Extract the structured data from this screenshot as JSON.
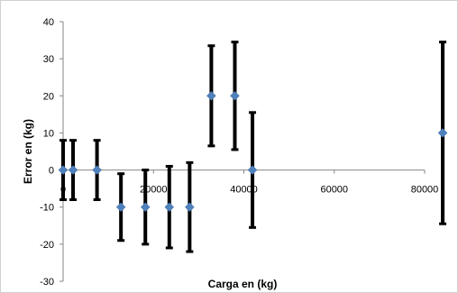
{
  "chart_data": {
    "type": "scatter",
    "xlabel": "Carga en (kg)",
    "ylabel": "Error en (kg)",
    "xlim": [
      0,
      80000
    ],
    "ylim": [
      -30,
      40
    ],
    "x_ticks": [
      0,
      20000,
      40000,
      60000,
      80000
    ],
    "y_ticks": [
      -30,
      -20,
      -10,
      0,
      10,
      20,
      30,
      40
    ],
    "grid": false,
    "legend": "none",
    "marker_color": "#4f81bd",
    "errorbar_color": "#000000",
    "points": [
      {
        "x": 0,
        "y": 0,
        "low": -8,
        "high": 8
      },
      {
        "x": 2200,
        "y": 0,
        "low": -8,
        "high": 8
      },
      {
        "x": 7500,
        "y": 0,
        "low": -8,
        "high": 8
      },
      {
        "x": 12800,
        "y": -10,
        "low": -19,
        "high": -1
      },
      {
        "x": 18200,
        "y": -10,
        "low": -20,
        "high": 0
      },
      {
        "x": 23500,
        "y": -10,
        "low": -21,
        "high": 1
      },
      {
        "x": 28000,
        "y": -10,
        "low": -22,
        "high": 2
      },
      {
        "x": 32800,
        "y": 20,
        "low": 6.5,
        "high": 33.5
      },
      {
        "x": 38000,
        "y": 20,
        "low": 5.5,
        "high": 34.5
      },
      {
        "x": 41900,
        "y": 0,
        "low": -15.5,
        "high": 15.5
      },
      {
        "x": 84000,
        "y": 10,
        "low": -14.5,
        "high": 34.5
      }
    ]
  }
}
